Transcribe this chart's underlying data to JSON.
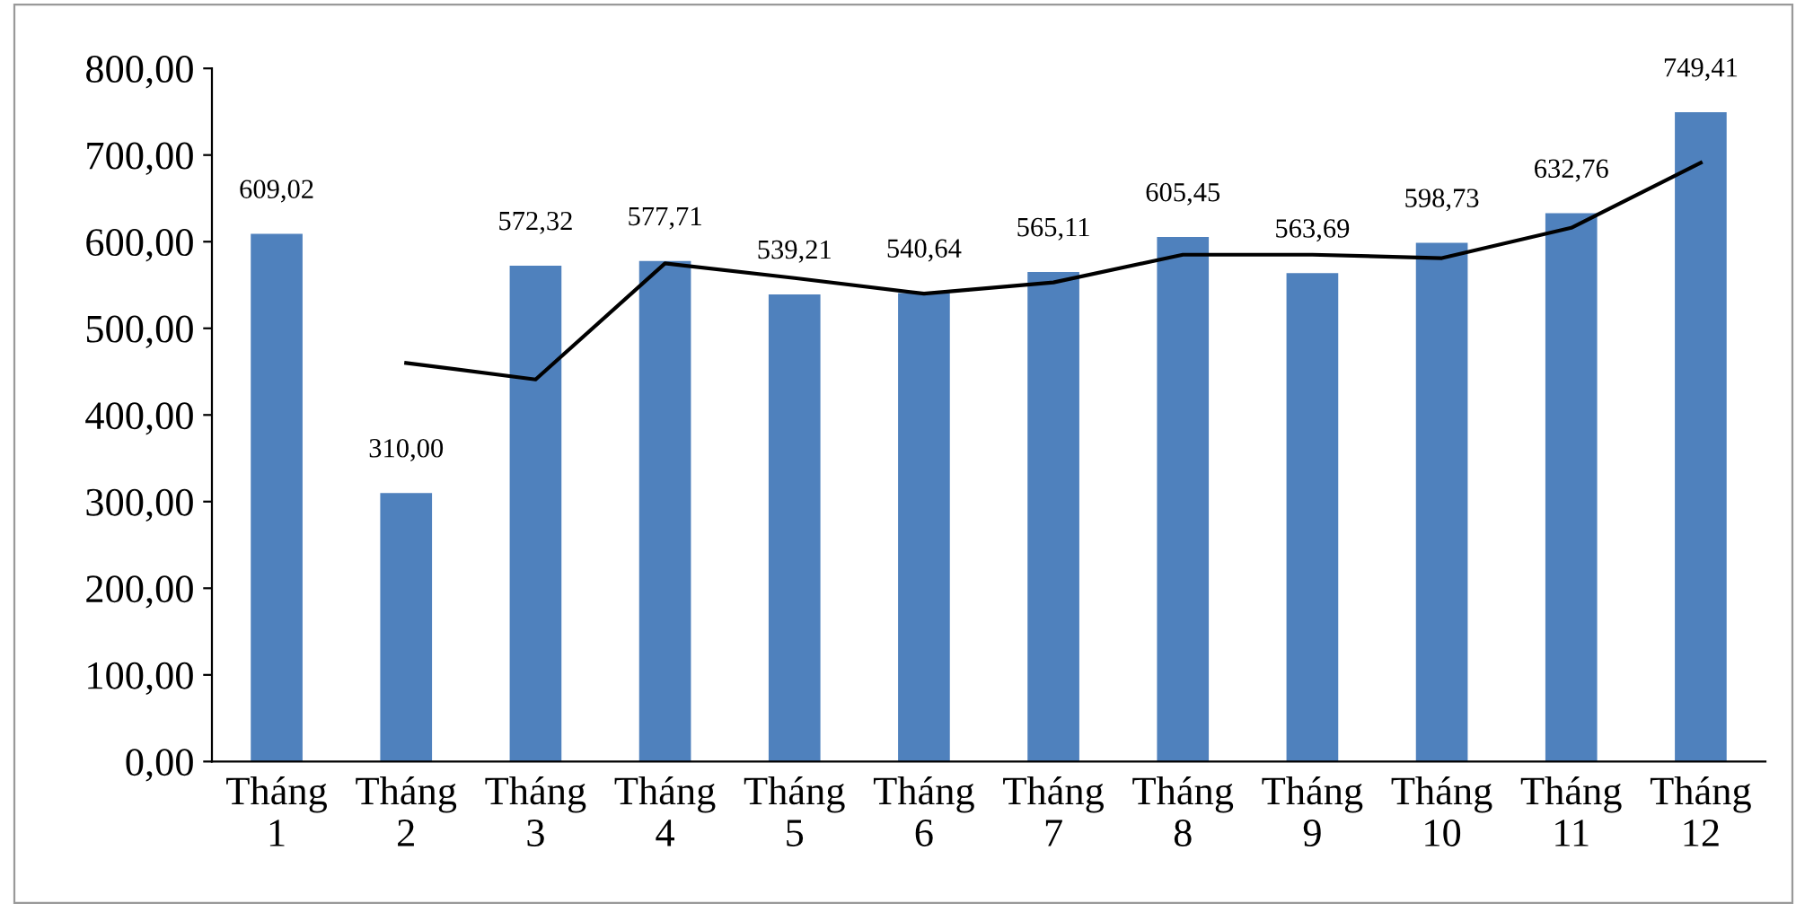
{
  "chart_data": {
    "type": "bar",
    "categories": [
      "Tháng\n1",
      "Tháng\n2",
      "Tháng\n3",
      "Tháng\n4",
      "Tháng\n5",
      "Tháng\n6",
      "Tháng\n7",
      "Tháng\n8",
      "Tháng\n9",
      "Tháng\n10",
      "Tháng\n11",
      "Tháng\n12"
    ],
    "series": [
      {
        "color": "#4f81bd",
        "values": [
          609.02,
          310.0,
          572.32,
          577.71,
          539.21,
          540.64,
          565.11,
          605.45,
          563.69,
          598.73,
          632.76,
          749.41
        ],
        "value_labels": [
          "609,02",
          "310,00",
          "572,32",
          "577,71",
          "539,21",
          "540,64",
          "565,11",
          "605,45",
          "563,69",
          "598,73",
          "632,76",
          "749,41"
        ]
      },
      {
        "type": "line",
        "color": "#000000",
        "values": [
          null,
          460,
          441,
          575,
          558,
          540,
          553,
          585,
          585,
          581,
          616,
          691
        ]
      }
    ],
    "ylim": [
      0,
      800
    ],
    "yticks": [
      {
        "value": 0,
        "label": "0,00"
      },
      {
        "value": 100,
        "label": "100,00"
      },
      {
        "value": 200,
        "label": "200,00"
      },
      {
        "value": 300,
        "label": "300,00"
      },
      {
        "value": 400,
        "label": "400,00"
      },
      {
        "value": 500,
        "label": "500,00"
      },
      {
        "value": 600,
        "label": "600,00"
      },
      {
        "value": 700,
        "label": "700,00"
      },
      {
        "value": 800,
        "label": "800,00"
      }
    ],
    "grid": false,
    "legend": false
  }
}
